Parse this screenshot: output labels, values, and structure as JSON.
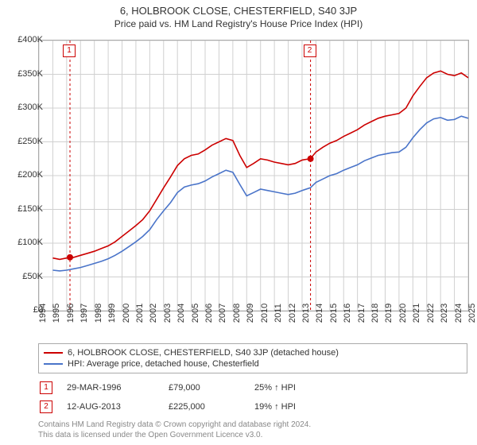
{
  "title": "6, HOLBROOK CLOSE, CHESTERFIELD, S40 3JP",
  "subtitle": "Price paid vs. HM Land Registry's House Price Index (HPI)",
  "chart": {
    "type": "line",
    "background_color": "#ffffff",
    "grid_color": "#d0d0d0",
    "border_color": "#aaaaaa",
    "x": {
      "min": 1994,
      "max": 2025,
      "tick_step": 1,
      "labels": [
        "1994",
        "1995",
        "1996",
        "1997",
        "1998",
        "1999",
        "2000",
        "2001",
        "2002",
        "2003",
        "2004",
        "2005",
        "2006",
        "2007",
        "2008",
        "2009",
        "2010",
        "2011",
        "2012",
        "2013",
        "2014",
        "2015",
        "2016",
        "2017",
        "2018",
        "2019",
        "2020",
        "2021",
        "2022",
        "2023",
        "2024",
        "2025"
      ],
      "label_fontsize": 11,
      "label_rotation": -90
    },
    "y": {
      "min": 0,
      "max": 400000,
      "tick_step": 50000,
      "prefix": "£",
      "suffix": "K",
      "labels": [
        "£0",
        "£50K",
        "£100K",
        "£150K",
        "£200K",
        "£250K",
        "£300K",
        "£350K",
        "£400K"
      ],
      "label_fontsize": 11
    },
    "series": [
      {
        "id": "property",
        "label": "6, HOLBROOK CLOSE, CHESTERFIELD, S40 3JP (detached house)",
        "color": "#cc0000",
        "line_width": 1.6,
        "points": [
          [
            1995.0,
            78000
          ],
          [
            1995.5,
            76000
          ],
          [
            1996.0,
            78000
          ],
          [
            1996.5,
            79000
          ],
          [
            1997.0,
            82000
          ],
          [
            1997.5,
            85000
          ],
          [
            1998.0,
            88000
          ],
          [
            1998.5,
            92000
          ],
          [
            1999.0,
            96000
          ],
          [
            1999.5,
            102000
          ],
          [
            2000.0,
            110000
          ],
          [
            2000.5,
            118000
          ],
          [
            2001.0,
            126000
          ],
          [
            2001.5,
            135000
          ],
          [
            2002.0,
            148000
          ],
          [
            2002.5,
            165000
          ],
          [
            2003.0,
            182000
          ],
          [
            2003.5,
            198000
          ],
          [
            2004.0,
            215000
          ],
          [
            2004.5,
            225000
          ],
          [
            2005.0,
            230000
          ],
          [
            2005.5,
            232000
          ],
          [
            2006.0,
            238000
          ],
          [
            2006.5,
            245000
          ],
          [
            2007.0,
            250000
          ],
          [
            2007.5,
            255000
          ],
          [
            2008.0,
            252000
          ],
          [
            2008.5,
            230000
          ],
          [
            2009.0,
            212000
          ],
          [
            2009.5,
            218000
          ],
          [
            2010.0,
            225000
          ],
          [
            2010.5,
            223000
          ],
          [
            2011.0,
            220000
          ],
          [
            2011.5,
            218000
          ],
          [
            2012.0,
            216000
          ],
          [
            2012.5,
            218000
          ],
          [
            2013.0,
            223000
          ],
          [
            2013.6,
            225000
          ],
          [
            2014.0,
            235000
          ],
          [
            2014.5,
            242000
          ],
          [
            2015.0,
            248000
          ],
          [
            2015.5,
            252000
          ],
          [
            2016.0,
            258000
          ],
          [
            2016.5,
            263000
          ],
          [
            2017.0,
            268000
          ],
          [
            2017.5,
            275000
          ],
          [
            2018.0,
            280000
          ],
          [
            2018.5,
            285000
          ],
          [
            2019.0,
            288000
          ],
          [
            2019.5,
            290000
          ],
          [
            2020.0,
            292000
          ],
          [
            2020.5,
            300000
          ],
          [
            2021.0,
            318000
          ],
          [
            2021.5,
            332000
          ],
          [
            2022.0,
            345000
          ],
          [
            2022.5,
            352000
          ],
          [
            2023.0,
            355000
          ],
          [
            2023.5,
            350000
          ],
          [
            2024.0,
            348000
          ],
          [
            2024.5,
            352000
          ],
          [
            2025.0,
            345000
          ]
        ]
      },
      {
        "id": "hpi",
        "label": "HPI: Average price, detached house, Chesterfield",
        "color": "#4a74c9",
        "line_width": 1.4,
        "points": [
          [
            1995.0,
            60000
          ],
          [
            1995.5,
            59000
          ],
          [
            1996.0,
            60000
          ],
          [
            1996.5,
            62000
          ],
          [
            1997.0,
            64000
          ],
          [
            1997.5,
            67000
          ],
          [
            1998.0,
            70000
          ],
          [
            1998.5,
            73000
          ],
          [
            1999.0,
            77000
          ],
          [
            1999.5,
            82000
          ],
          [
            2000.0,
            88000
          ],
          [
            2000.5,
            95000
          ],
          [
            2001.0,
            102000
          ],
          [
            2001.5,
            110000
          ],
          [
            2002.0,
            120000
          ],
          [
            2002.5,
            135000
          ],
          [
            2003.0,
            148000
          ],
          [
            2003.5,
            160000
          ],
          [
            2004.0,
            175000
          ],
          [
            2004.5,
            183000
          ],
          [
            2005.0,
            186000
          ],
          [
            2005.5,
            188000
          ],
          [
            2006.0,
            192000
          ],
          [
            2006.5,
            198000
          ],
          [
            2007.0,
            203000
          ],
          [
            2007.5,
            208000
          ],
          [
            2008.0,
            205000
          ],
          [
            2008.5,
            187000
          ],
          [
            2009.0,
            170000
          ],
          [
            2009.5,
            175000
          ],
          [
            2010.0,
            180000
          ],
          [
            2010.5,
            178000
          ],
          [
            2011.0,
            176000
          ],
          [
            2011.5,
            174000
          ],
          [
            2012.0,
            172000
          ],
          [
            2012.5,
            174000
          ],
          [
            2013.0,
            178000
          ],
          [
            2013.6,
            182000
          ],
          [
            2014.0,
            190000
          ],
          [
            2014.5,
            195000
          ],
          [
            2015.0,
            200000
          ],
          [
            2015.5,
            203000
          ],
          [
            2016.0,
            208000
          ],
          [
            2016.5,
            212000
          ],
          [
            2017.0,
            216000
          ],
          [
            2017.5,
            222000
          ],
          [
            2018.0,
            226000
          ],
          [
            2018.5,
            230000
          ],
          [
            2019.0,
            232000
          ],
          [
            2019.5,
            234000
          ],
          [
            2020.0,
            235000
          ],
          [
            2020.5,
            242000
          ],
          [
            2021.0,
            256000
          ],
          [
            2021.5,
            268000
          ],
          [
            2022.0,
            278000
          ],
          [
            2022.5,
            284000
          ],
          [
            2023.0,
            286000
          ],
          [
            2023.5,
            282000
          ],
          [
            2024.0,
            283000
          ],
          [
            2024.5,
            288000
          ],
          [
            2025.0,
            285000
          ]
        ]
      }
    ],
    "markers": [
      {
        "n": "1",
        "year": 1996.24,
        "price": 79000,
        "color": "#cc0000"
      },
      {
        "n": "2",
        "year": 2013.61,
        "price": 225000,
        "color": "#cc0000"
      }
    ],
    "marker_box_color": "#cc0000",
    "dot_radius": 4
  },
  "legend": {
    "items": [
      {
        "color": "#cc0000",
        "text": "6, HOLBROOK CLOSE, CHESTERFIELD, S40 3JP (detached house)"
      },
      {
        "color": "#4a74c9",
        "text": "HPI: Average price, detached house, Chesterfield"
      }
    ]
  },
  "sales": [
    {
      "n": "1",
      "date": "29-MAR-1996",
      "price": "£79,000",
      "diff": "25% ↑ HPI",
      "box_color": "#cc0000"
    },
    {
      "n": "2",
      "date": "12-AUG-2013",
      "price": "£225,000",
      "diff": "19% ↑ HPI",
      "box_color": "#cc0000"
    }
  ],
  "footer": {
    "line1": "Contains HM Land Registry data © Crown copyright and database right 2024.",
    "line2": "This data is licensed under the Open Government Licence v3.0."
  }
}
